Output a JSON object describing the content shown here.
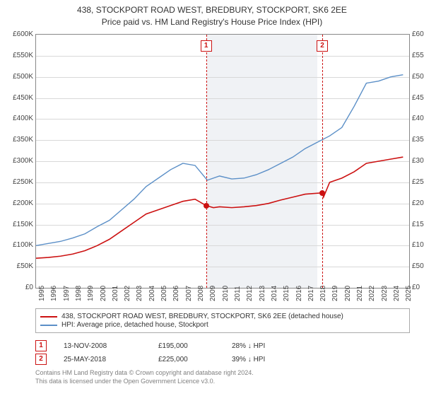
{
  "title": {
    "line1": "438, STOCKPORT ROAD WEST, BREDBURY, STOCKPORT, SK6 2EE",
    "line2": "Price paid vs. HM Land Registry's House Price Index (HPI)"
  },
  "chart": {
    "type": "line",
    "background_color": "#ffffff",
    "grid_color": "#d8d8d8",
    "border_color": "#888888",
    "x_years": [
      1995,
      1996,
      1997,
      1998,
      1999,
      2000,
      2001,
      2002,
      2003,
      2004,
      2005,
      2006,
      2007,
      2008,
      2009,
      2010,
      2011,
      2012,
      2013,
      2014,
      2015,
      2016,
      2017,
      2018,
      2019,
      2020,
      2021,
      2022,
      2023,
      2024,
      2025
    ],
    "xlim": [
      1995,
      2025.5
    ],
    "ylim": [
      0,
      600
    ],
    "ytick_step": 50,
    "y_prefix": "£",
    "y_suffix": "K",
    "label_fontsize": 10,
    "exclusion_zone": {
      "start": 2009,
      "end": 2018,
      "color": "#f0f2f5"
    },
    "series": [
      {
        "name": "price_paid",
        "label": "438, STOCKPORT ROAD WEST, BREDBURY, STOCKPORT, SK6 2EE (detached house)",
        "color": "#cc1111",
        "line_width": 1.6,
        "data": [
          [
            1995,
            70
          ],
          [
            1996,
            72
          ],
          [
            1997,
            75
          ],
          [
            1998,
            80
          ],
          [
            1999,
            88
          ],
          [
            2000,
            100
          ],
          [
            2001,
            115
          ],
          [
            2002,
            135
          ],
          [
            2003,
            155
          ],
          [
            2004,
            175
          ],
          [
            2005,
            185
          ],
          [
            2006,
            195
          ],
          [
            2007,
            205
          ],
          [
            2008,
            210
          ],
          [
            2008.9,
            195
          ],
          [
            2009.5,
            190
          ],
          [
            2010,
            192
          ],
          [
            2011,
            190
          ],
          [
            2012,
            192
          ],
          [
            2013,
            195
          ],
          [
            2014,
            200
          ],
          [
            2015,
            208
          ],
          [
            2016,
            215
          ],
          [
            2017,
            222
          ],
          [
            2018.4,
            225
          ],
          [
            2018.5,
            215
          ],
          [
            2019,
            250
          ],
          [
            2020,
            260
          ],
          [
            2021,
            275
          ],
          [
            2022,
            295
          ],
          [
            2023,
            300
          ],
          [
            2024,
            305
          ],
          [
            2025,
            310
          ]
        ]
      },
      {
        "name": "hpi",
        "label": "HPI: Average price, detached house, Stockport",
        "color": "#5b8fc7",
        "line_width": 1.4,
        "data": [
          [
            1995,
            100
          ],
          [
            1996,
            105
          ],
          [
            1997,
            110
          ],
          [
            1998,
            118
          ],
          [
            1999,
            128
          ],
          [
            2000,
            145
          ],
          [
            2001,
            160
          ],
          [
            2002,
            185
          ],
          [
            2003,
            210
          ],
          [
            2004,
            240
          ],
          [
            2005,
            260
          ],
          [
            2006,
            280
          ],
          [
            2007,
            295
          ],
          [
            2008,
            290
          ],
          [
            2009,
            255
          ],
          [
            2010,
            265
          ],
          [
            2011,
            258
          ],
          [
            2012,
            260
          ],
          [
            2013,
            268
          ],
          [
            2014,
            280
          ],
          [
            2015,
            295
          ],
          [
            2016,
            310
          ],
          [
            2017,
            330
          ],
          [
            2018,
            345
          ],
          [
            2019,
            360
          ],
          [
            2020,
            380
          ],
          [
            2021,
            430
          ],
          [
            2022,
            485
          ],
          [
            2023,
            490
          ],
          [
            2024,
            500
          ],
          [
            2025,
            505
          ]
        ]
      }
    ],
    "sale_points": [
      {
        "n": 1,
        "x": 2008.9,
        "y": 195,
        "color": "#cc1111"
      },
      {
        "n": 2,
        "x": 2018.4,
        "y": 225,
        "color": "#cc1111"
      }
    ]
  },
  "legend": {
    "items": [
      {
        "color": "#cc1111",
        "label": "438, STOCKPORT ROAD WEST, BREDBURY, STOCKPORT, SK6 2EE (detached house)"
      },
      {
        "color": "#5b8fc7",
        "label": "HPI: Average price, detached house, Stockport"
      }
    ]
  },
  "sales": [
    {
      "n": 1,
      "date": "13-NOV-2008",
      "price": "£195,000",
      "diff": "28% ↓ HPI",
      "color": "#cc1111"
    },
    {
      "n": 2,
      "date": "25-MAY-2018",
      "price": "£225,000",
      "diff": "39% ↓ HPI",
      "color": "#cc1111"
    }
  ],
  "footer": {
    "line1": "Contains HM Land Registry data © Crown copyright and database right 2024.",
    "line2": "This data is licensed under the Open Government Licence v3.0."
  }
}
